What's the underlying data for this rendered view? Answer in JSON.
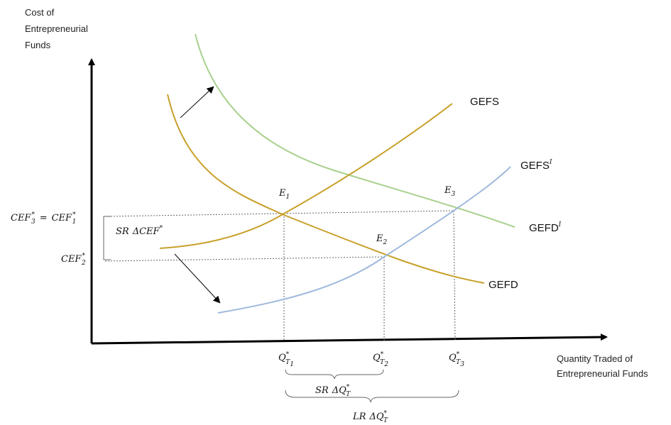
{
  "axes": {
    "y_title_lines": [
      "Cost of",
      "Entrepreneurial",
      "Funds"
    ],
    "x_title_lines": [
      "Quantity Traded of",
      "Entrepreneurial Funds"
    ]
  },
  "curves": {
    "gefs": {
      "label": "GEFS",
      "color": "#c8a02a"
    },
    "gefd": {
      "label": "GEFD",
      "color": "#c8a02a"
    },
    "gefs_shift": {
      "label": "GEFS",
      "label_sup": "I",
      "color": "#9fb9dc"
    },
    "gefd_shift": {
      "label": "GEFD",
      "label_sup": "I",
      "color": "#a8d08d"
    }
  },
  "points": {
    "e1": {
      "base": "E",
      "sub": "1"
    },
    "e2": {
      "base": "E",
      "sub": "2"
    },
    "e3": {
      "base": "E",
      "sub": "3"
    }
  },
  "y_labels": {
    "cef3": {
      "base": "CEF",
      "sub": "3",
      "sup": "*"
    },
    "equals": "=",
    "cef1": {
      "base": "CEF",
      "sub": "1",
      "sup": "*"
    },
    "cef2": {
      "base": "CEF",
      "sub": "2",
      "sup": "*"
    },
    "sr_delta_cef": {
      "prefix": "SR",
      "delta": "Δ",
      "base": "CEF",
      "sup": "*"
    }
  },
  "x_labels": {
    "q1": {
      "base": "Q",
      "sub": "T",
      "subsub": "1",
      "sup": "*"
    },
    "q2": {
      "base": "Q",
      "sub": "T",
      "subsub": "2",
      "sup": "*"
    },
    "q3": {
      "base": "Q",
      "sub": "T",
      "subsub": "3",
      "sup": "*"
    },
    "sr_delta_q": {
      "prefix": "SR",
      "delta": "Δ",
      "base": "Q",
      "sub": "T",
      "sup": "*"
    },
    "lr_delta_q": {
      "prefix": "LR",
      "delta": "Δ",
      "base": "Q",
      "sub": "T",
      "sup": "*"
    }
  }
}
